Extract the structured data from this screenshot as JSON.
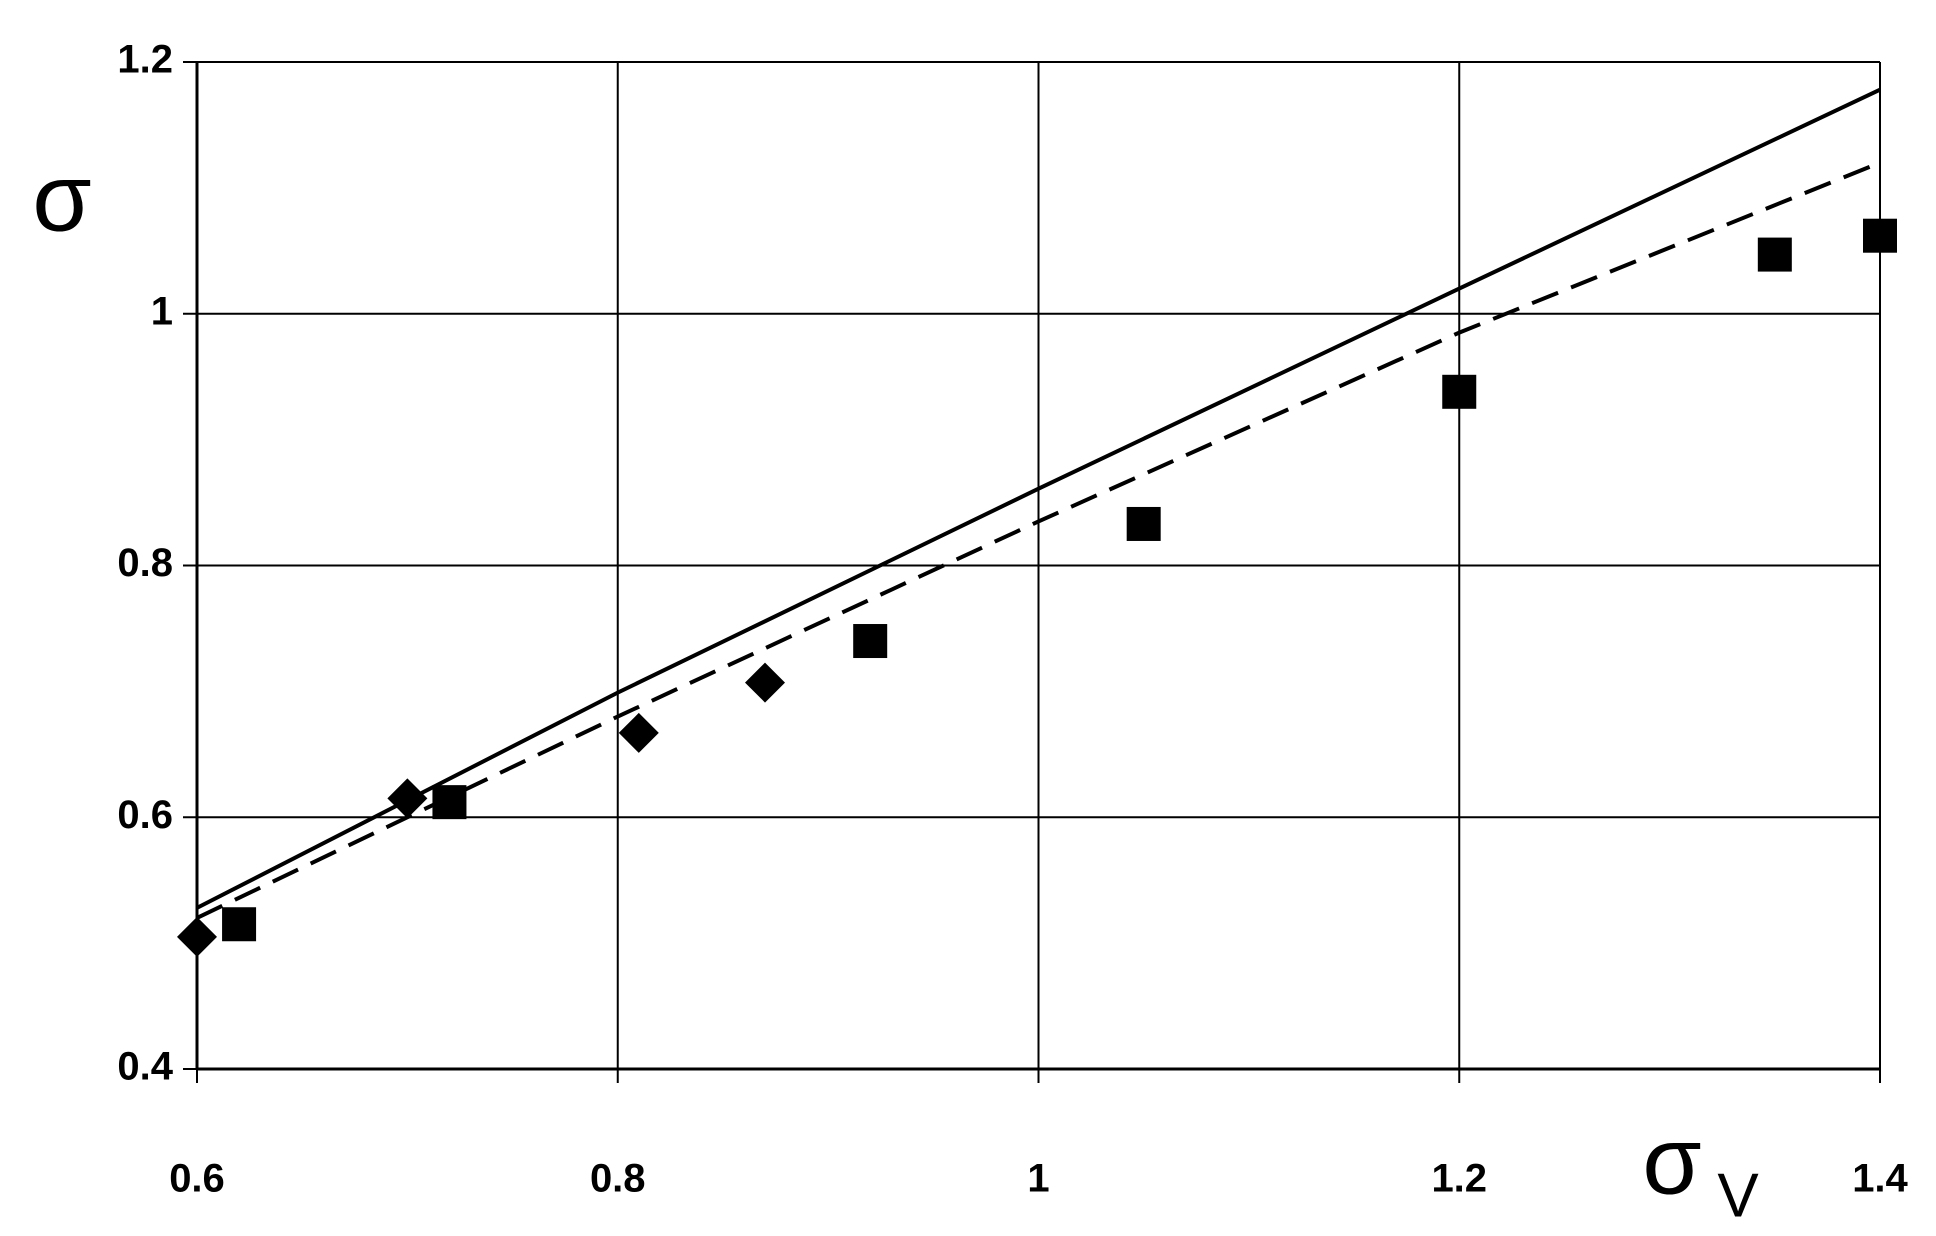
{
  "chart_data": {
    "type": "scatter",
    "ylabel": "σ",
    "xlabel": "σ",
    "xlabel_subscript": "V",
    "xlim": [
      0.6,
      1.4
    ],
    "ylim": [
      0.4,
      1.2
    ],
    "xticks": [
      0.6,
      0.8,
      1,
      1.2,
      1.4
    ],
    "yticks": [
      0.4,
      0.6,
      0.8,
      1,
      1.2
    ],
    "grid": true,
    "series": [
      {
        "marker": "diamond",
        "color": "#000000",
        "x": [
          0.6,
          0.7,
          0.81,
          0.87
        ],
        "values": [
          0.505,
          0.615,
          0.667,
          0.707
        ]
      },
      {
        "marker": "square",
        "color": "#000000",
        "x": [
          0.62,
          0.72,
          0.92,
          1.05,
          1.2,
          1.35,
          1.4
        ],
        "values": [
          0.515,
          0.612,
          0.74,
          0.833,
          0.938,
          1.047,
          1.062
        ]
      },
      {
        "line": "solid",
        "color": "#000000",
        "x": [
          0.6,
          0.8,
          1,
          1.2,
          1.4
        ],
        "values": [
          0.528,
          0.699,
          0.861,
          1.02,
          1.178
        ]
      },
      {
        "line": "dashed",
        "color": "#000000",
        "x": [
          0.6,
          0.8,
          1,
          1.2,
          1.4
        ],
        "values": [
          0.52,
          0.68,
          0.835,
          0.985,
          1.12
        ]
      }
    ]
  }
}
